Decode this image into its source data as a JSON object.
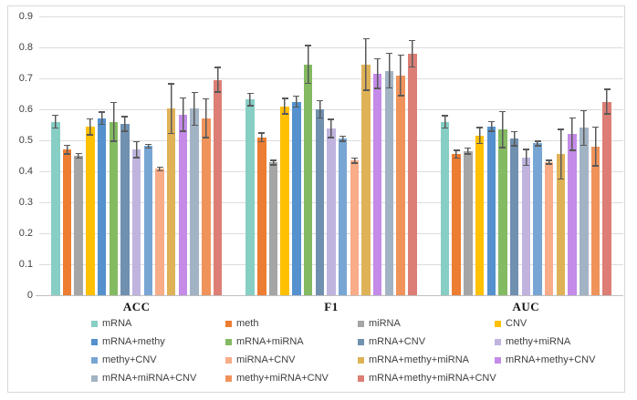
{
  "chart_data": {
    "type": "bar",
    "title": "",
    "xlabel": "",
    "ylabel": "",
    "categories": [
      "ACC",
      "F1",
      "AUC"
    ],
    "y_axis": {
      "min": 0,
      "max": 0.9,
      "step": 0.1,
      "ticks": [
        "0.9",
        "0.8",
        "0.7",
        "0.6",
        "0.5",
        "0.4",
        "0.3",
        "0.2",
        "0.1",
        "0"
      ]
    },
    "grid": true,
    "legend_position": "bottom",
    "error_bars": true,
    "series": [
      {
        "name": "mRNA",
        "color": "#87CEC5",
        "values": [
          0.56,
          0.632,
          0.56
        ],
        "errors": [
          0.023,
          0.022,
          0.022
        ]
      },
      {
        "name": "meth",
        "color": "#ED7D31",
        "values": [
          0.47,
          0.51,
          0.455
        ],
        "errors": [
          0.016,
          0.016,
          0.015
        ]
      },
      {
        "name": "miRNA",
        "color": "#A5A5A5",
        "values": [
          0.45,
          0.428,
          0.465
        ],
        "errors": [
          0.01,
          0.01,
          0.012
        ]
      },
      {
        "name": "CNV",
        "color": "#FFC000",
        "values": [
          0.543,
          0.61,
          0.515
        ],
        "errors": [
          0.028,
          0.027,
          0.028
        ]
      },
      {
        "name": "mRNA+methy",
        "color": "#5491CE",
        "values": [
          0.572,
          0.625,
          0.545
        ],
        "errors": [
          0.022,
          0.02,
          0.018
        ]
      },
      {
        "name": "mRNA+miRNA",
        "color": "#84BA62",
        "values": [
          0.56,
          0.745,
          0.535
        ],
        "errors": [
          0.065,
          0.063,
          0.06
        ]
      },
      {
        "name": "mRNA+CNV",
        "color": "#7090B0",
        "values": [
          0.553,
          0.6,
          0.505
        ],
        "errors": [
          0.026,
          0.03,
          0.025
        ]
      },
      {
        "name": "methy+miRNA",
        "color": "#C0B4DF",
        "values": [
          0.47,
          0.538,
          0.445
        ],
        "errors": [
          0.028,
          0.032,
          0.028
        ]
      },
      {
        "name": "methy+CNV",
        "color": "#78A6D4",
        "values": [
          0.481,
          0.505,
          0.49
        ],
        "errors": [
          0.008,
          0.01,
          0.01
        ]
      },
      {
        "name": "miRNA+CNV",
        "color": "#F8AC87",
        "values": [
          0.408,
          0.435,
          0.43
        ],
        "errors": [
          0.008,
          0.01,
          0.008
        ]
      },
      {
        "name": "mRNA+methy+miRNA",
        "color": "#E0B257",
        "values": [
          0.602,
          0.745,
          0.455
        ],
        "errors": [
          0.082,
          0.085,
          0.082
        ]
      },
      {
        "name": "mRNA+methy+CNV",
        "color": "#C48BE8",
        "values": [
          0.583,
          0.715,
          0.52
        ],
        "errors": [
          0.056,
          0.05,
          0.055
        ]
      },
      {
        "name": "mRNA+miRNA+CNV",
        "color": "#A2B3C4",
        "values": [
          0.602,
          0.725,
          0.54
        ],
        "errors": [
          0.055,
          0.058,
          0.058
        ]
      },
      {
        "name": "methy+miRNA+CNV",
        "color": "#F0935A",
        "values": [
          0.571,
          0.71,
          0.48
        ],
        "errors": [
          0.065,
          0.068,
          0.065
        ]
      },
      {
        "name": "mRNA+methy+miRNA+CNV",
        "color": "#DC7E75",
        "values": [
          0.695,
          0.78,
          0.625
        ],
        "errors": [
          0.042,
          0.045,
          0.042
        ]
      }
    ],
    "colors": {
      "gridline": "#DCDCDC",
      "axis_line": "#BFBFBF",
      "error_bar": "#595959",
      "frame_border": "#D8D8D8",
      "tick_text": "#404040",
      "category_text": "#111111",
      "background": "#FFFFFF"
    }
  }
}
